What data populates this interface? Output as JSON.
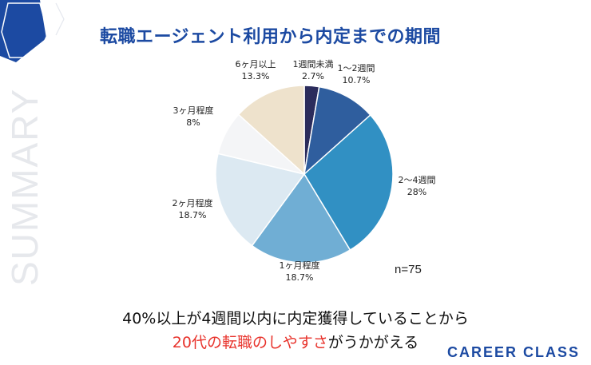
{
  "page_title": "転職エージェント利用から内定までの期間",
  "side_watermark": "SUMMARY",
  "sample_size": "n=75",
  "conclusion": {
    "line1": "40%以上が4週間以内に内定獲得していることから",
    "line2_highlight": "20代の転職のしやすさ",
    "line2_rest": "がうかがえる"
  },
  "brand": "CAREER CLASS",
  "colors": {
    "accent_blue": "#1c4aa2",
    "highlight_red": "#e8332c"
  },
  "chart_data": {
    "type": "pie",
    "title": "転職エージェント利用から内定までの期間",
    "start": "12 o'clock, clockwise",
    "slices": [
      {
        "label": "1週間未満",
        "value": 2.7,
        "display": "2.7%",
        "color": "#2b2c5c"
      },
      {
        "label": "1〜2週間",
        "value": 10.7,
        "display": "10.7%",
        "color": "#2f5e9e"
      },
      {
        "label": "2〜4週間",
        "value": 28,
        "display": "28%",
        "color": "#3190c3"
      },
      {
        "label": "1ヶ月程度",
        "value": 18.7,
        "display": "18.7%",
        "color": "#70aed4"
      },
      {
        "label": "2ヶ月程度",
        "value": 18.7,
        "display": "18.7%",
        "color": "#dce9f2"
      },
      {
        "label": "3ヶ月程度",
        "value": 8,
        "display": "8%",
        "color": "#f4f5f7"
      },
      {
        "label": "6ヶ月以上",
        "value": 13.3,
        "display": "13.3%",
        "color": "#eee2cc"
      }
    ]
  }
}
